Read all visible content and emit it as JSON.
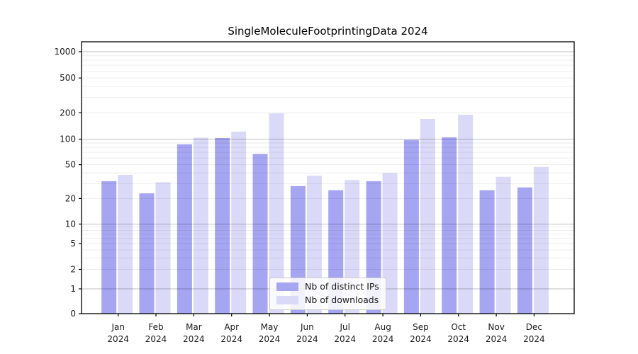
{
  "chart_data": {
    "type": "bar",
    "title": "SingleMoleculeFootprintingData 2024",
    "categories": [
      "Jan",
      "Feb",
      "Mar",
      "Apr",
      "May",
      "Jun",
      "Jul",
      "Aug",
      "Sep",
      "Oct",
      "Nov",
      "Dec"
    ],
    "x_year_label": "2024",
    "series": [
      {
        "name": "Nb of distinct IPs",
        "color": "#a5a5f2",
        "values": [
          32,
          23,
          87,
          103,
          67,
          28,
          25,
          32,
          98,
          105,
          25,
          27
        ]
      },
      {
        "name": "Nb of downloads",
        "color": "#dadaf8",
        "values": [
          38,
          31,
          104,
          122,
          197,
          37,
          33,
          40,
          170,
          190,
          36,
          47
        ]
      }
    ],
    "yscale": "symlog",
    "yticks": [
      0,
      1,
      2,
      5,
      10,
      20,
      50,
      100,
      200,
      500,
      1000
    ],
    "ylim": [
      0,
      1300
    ],
    "grid": "both",
    "legend_position": "lower-center",
    "colors": {
      "major_grid": "rgba(0,0,0,0.25)",
      "minor_grid": "rgba(0,0,0,0.08)",
      "axis": "#000000",
      "text": "#1a1a1a"
    }
  }
}
